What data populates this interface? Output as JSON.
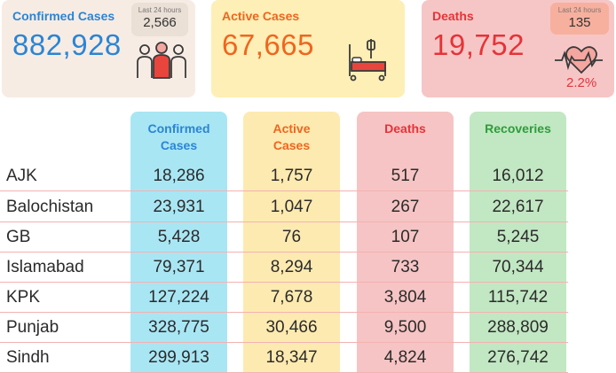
{
  "colors": {
    "confirmed_accent": "#2b85d4",
    "active_accent": "#f0651f",
    "deaths_accent": "#e63338",
    "recoveries_accent": "#2e9d3a",
    "confirmed_column": "#a9e6f4",
    "active_column": "#fdeab0",
    "deaths_column": "#f6c4c4",
    "recoveries_column": "#c2e7c3"
  },
  "cards": {
    "confirmed": {
      "title": "Confirmed Cases",
      "value": "882,928",
      "badge_label": "Last 24 hours",
      "badge_value": "2,566",
      "icon": "people-icon"
    },
    "active": {
      "title": "Active Cases",
      "value": "67,665",
      "icon": "hospital-bed-icon"
    },
    "deaths": {
      "title": "Deaths",
      "value": "19,752",
      "badge_label": "Last 24 hours",
      "badge_value": "135",
      "percent": "2.2%",
      "icon": "heartbeat-icon"
    }
  },
  "table": {
    "headers": {
      "confirmed_line1": "Confirmed",
      "confirmed_line2": "Cases",
      "active_line1": "Active",
      "active_line2": "Cases",
      "deaths": "Deaths",
      "recoveries": "Recoveries"
    },
    "rows": [
      {
        "region": "AJK",
        "confirmed": "18,286",
        "active": "1,757",
        "deaths": "517",
        "recoveries": "16,012"
      },
      {
        "region": "Balochistan",
        "confirmed": "23,931",
        "active": "1,047",
        "deaths": "267",
        "recoveries": "22,617"
      },
      {
        "region": "GB",
        "confirmed": "5,428",
        "active": "76",
        "deaths": "107",
        "recoveries": "5,245"
      },
      {
        "region": "Islamabad",
        "confirmed": "79,371",
        "active": "8,294",
        "deaths": "733",
        "recoveries": "70,344"
      },
      {
        "region": "KPK",
        "confirmed": "127,224",
        "active": "7,678",
        "deaths": "3,804",
        "recoveries": "115,742"
      },
      {
        "region": "Punjab",
        "confirmed": "328,775",
        "active": "30,466",
        "deaths": "9,500",
        "recoveries": "288,809"
      },
      {
        "region": "Sindh",
        "confirmed": "299,913",
        "active": "18,347",
        "deaths": "4,824",
        "recoveries": "276,742"
      }
    ]
  }
}
